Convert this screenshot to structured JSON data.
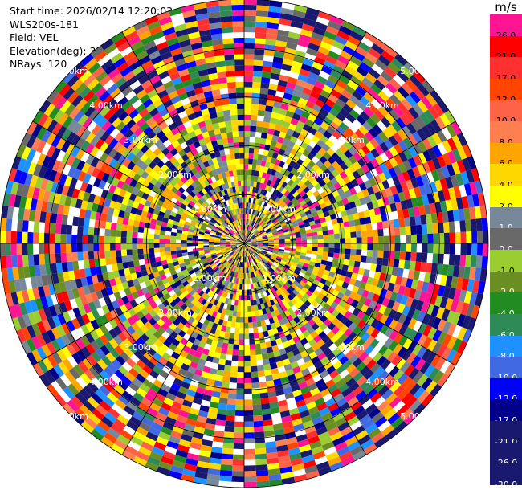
{
  "header": {
    "start_time": "Start time: 2026/02/14 12:20:03",
    "device": "WLS200s-181",
    "field": "Field: VEL",
    "elevation": "Elevation(deg): 35.00",
    "nrays": "NRays: 120"
  },
  "colorbar": {
    "unit": "m/s",
    "entries": [
      {
        "label": "26.0",
        "color": "#ff1493"
      },
      {
        "label": "21.0",
        "color": "#ff0000"
      },
      {
        "label": "17.0",
        "color": "#ff3030"
      },
      {
        "label": "13.0",
        "color": "#ff4500"
      },
      {
        "label": "10.0",
        "color": "#ff6347"
      },
      {
        "label": "8.0",
        "color": "#ff7f50"
      },
      {
        "label": "6.0",
        "color": "#ffa500"
      },
      {
        "label": "4.0",
        "color": "#ffd700"
      },
      {
        "label": "2.0",
        "color": "#ffff00"
      },
      {
        "label": "1.0",
        "color": "#778899"
      },
      {
        "label": "0.0",
        "color": "#696969"
      },
      {
        "label": "-1.0",
        "color": "#9acd32"
      },
      {
        "label": "-2.0",
        "color": "#6b8e23"
      },
      {
        "label": "-4.0",
        "color": "#228b22"
      },
      {
        "label": "-6.0",
        "color": "#2e8b57"
      },
      {
        "label": "-8.0",
        "color": "#1e90ff"
      },
      {
        "label": "-10.0",
        "color": "#4169e1"
      },
      {
        "label": "-13.0",
        "color": "#0000ff"
      },
      {
        "label": "-17.0",
        "color": "#00008b"
      },
      {
        "label": "-21.0",
        "color": "#191970"
      },
      {
        "label": "-26.0",
        "color": "#191970"
      },
      {
        "label": "-30.0",
        "color": "#191970"
      }
    ]
  },
  "chart_data": {
    "type": "heatmap",
    "projection": "polar (PPI)",
    "field": "VEL",
    "unit": "m/s",
    "nrays": 120,
    "range_rings_km": [
      1.0,
      2.0,
      3.0,
      4.0,
      5.0
    ],
    "range_ring_labels": [
      "1.00km",
      "2.00km",
      "3.00km",
      "4.00km",
      "5.00km"
    ],
    "max_range_km": 5.0,
    "ring_label_angles_deg": [
      45,
      135,
      225,
      315
    ],
    "grid": true
  }
}
